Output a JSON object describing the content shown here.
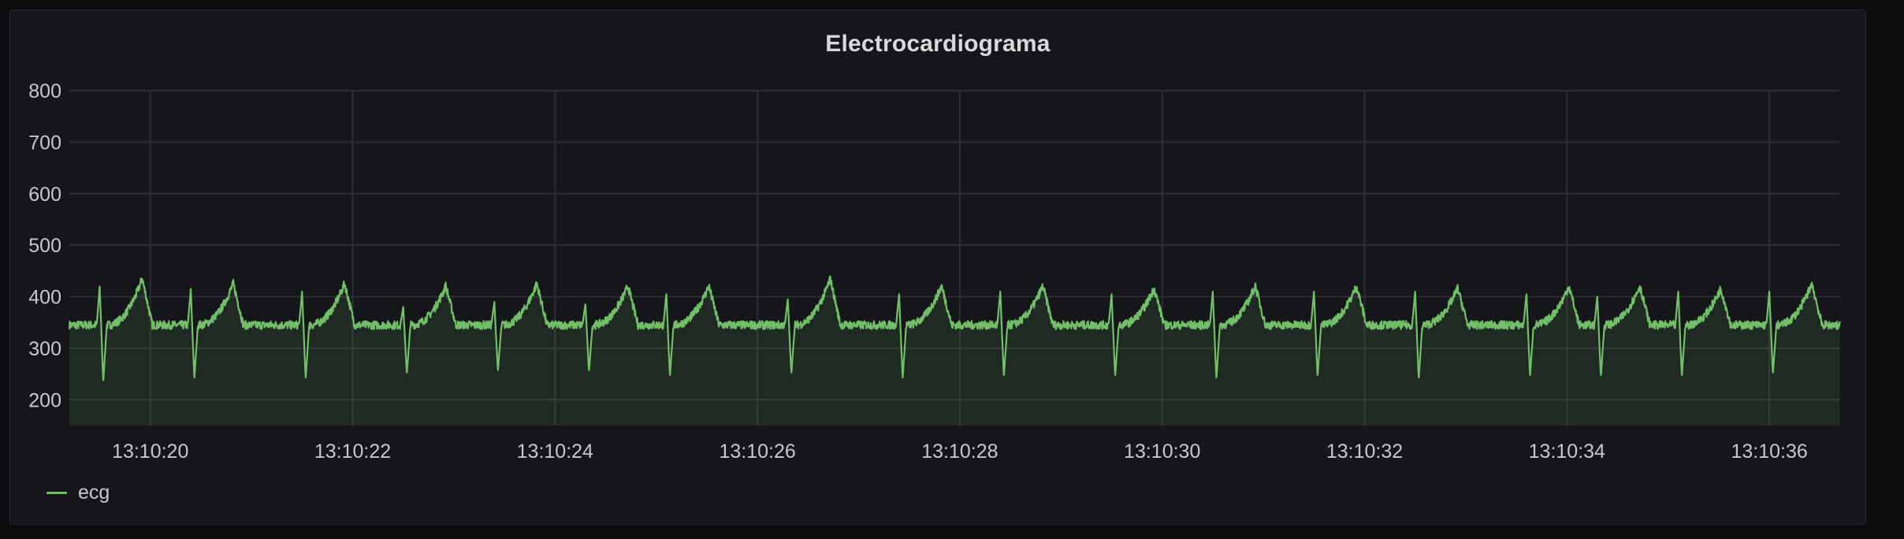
{
  "panel": {
    "title": "Electrocardiograma"
  },
  "colors": {
    "series": "#73bf69",
    "grid": "#2c2e33",
    "background": "#141619",
    "text": "#c7c8ca"
  },
  "chart_data": {
    "type": "line",
    "title": "Electrocardiograma",
    "xlabel": "",
    "ylabel": "",
    "x_range": [
      "13:10:19.2",
      "13:10:36.7"
    ],
    "ylim": [
      150,
      800
    ],
    "yticks": [
      200,
      300,
      400,
      500,
      600,
      700,
      800
    ],
    "xticks": [
      "13:10:20",
      "13:10:22",
      "13:10:24",
      "13:10:26",
      "13:10:28",
      "13:10:30",
      "13:10:32",
      "13:10:34",
      "13:10:36"
    ],
    "grid": true,
    "legend": "bottom-left",
    "series": [
      {
        "name": "ecg",
        "fill": true,
        "baseline": 345,
        "noise": 8,
        "beats": [
          {
            "t": "13:10:19.5",
            "r": 420,
            "s": 235,
            "t_peak": 440
          },
          {
            "t": "13:10:20.4",
            "r": 415,
            "s": 240,
            "t_peak": 430
          },
          {
            "t": "13:10:21.5",
            "r": 410,
            "s": 240,
            "t_peak": 430
          },
          {
            "t": "13:10:22.5",
            "r": 380,
            "s": 250,
            "t_peak": 425
          },
          {
            "t": "13:10:23.4",
            "r": 390,
            "s": 255,
            "t_peak": 430
          },
          {
            "t": "13:10:24.3",
            "r": 385,
            "s": 255,
            "t_peak": 425
          },
          {
            "t": "13:10:25.1",
            "r": 405,
            "s": 245,
            "t_peak": 425
          },
          {
            "t": "13:10:26.3",
            "r": 395,
            "s": 250,
            "t_peak": 440
          },
          {
            "t": "13:10:27.4",
            "r": 405,
            "s": 240,
            "t_peak": 425
          },
          {
            "t": "13:10:28.4",
            "r": 410,
            "s": 245,
            "t_peak": 425
          },
          {
            "t": "13:10:29.5",
            "r": 405,
            "s": 245,
            "t_peak": 420
          },
          {
            "t": "13:10:30.5",
            "r": 410,
            "s": 240,
            "t_peak": 425
          },
          {
            "t": "13:10:31.5",
            "r": 410,
            "s": 245,
            "t_peak": 425
          },
          {
            "t": "13:10:32.5",
            "r": 410,
            "s": 240,
            "t_peak": 420
          },
          {
            "t": "13:10:33.6",
            "r": 405,
            "s": 245,
            "t_peak": 425
          },
          {
            "t": "13:10:34.3",
            "r": 400,
            "s": 245,
            "t_peak": 425
          },
          {
            "t": "13:10:35.1",
            "r": 410,
            "s": 245,
            "t_peak": 420
          },
          {
            "t": "13:10:36.0",
            "r": 410,
            "s": 250,
            "t_peak": 430
          }
        ]
      }
    ]
  }
}
